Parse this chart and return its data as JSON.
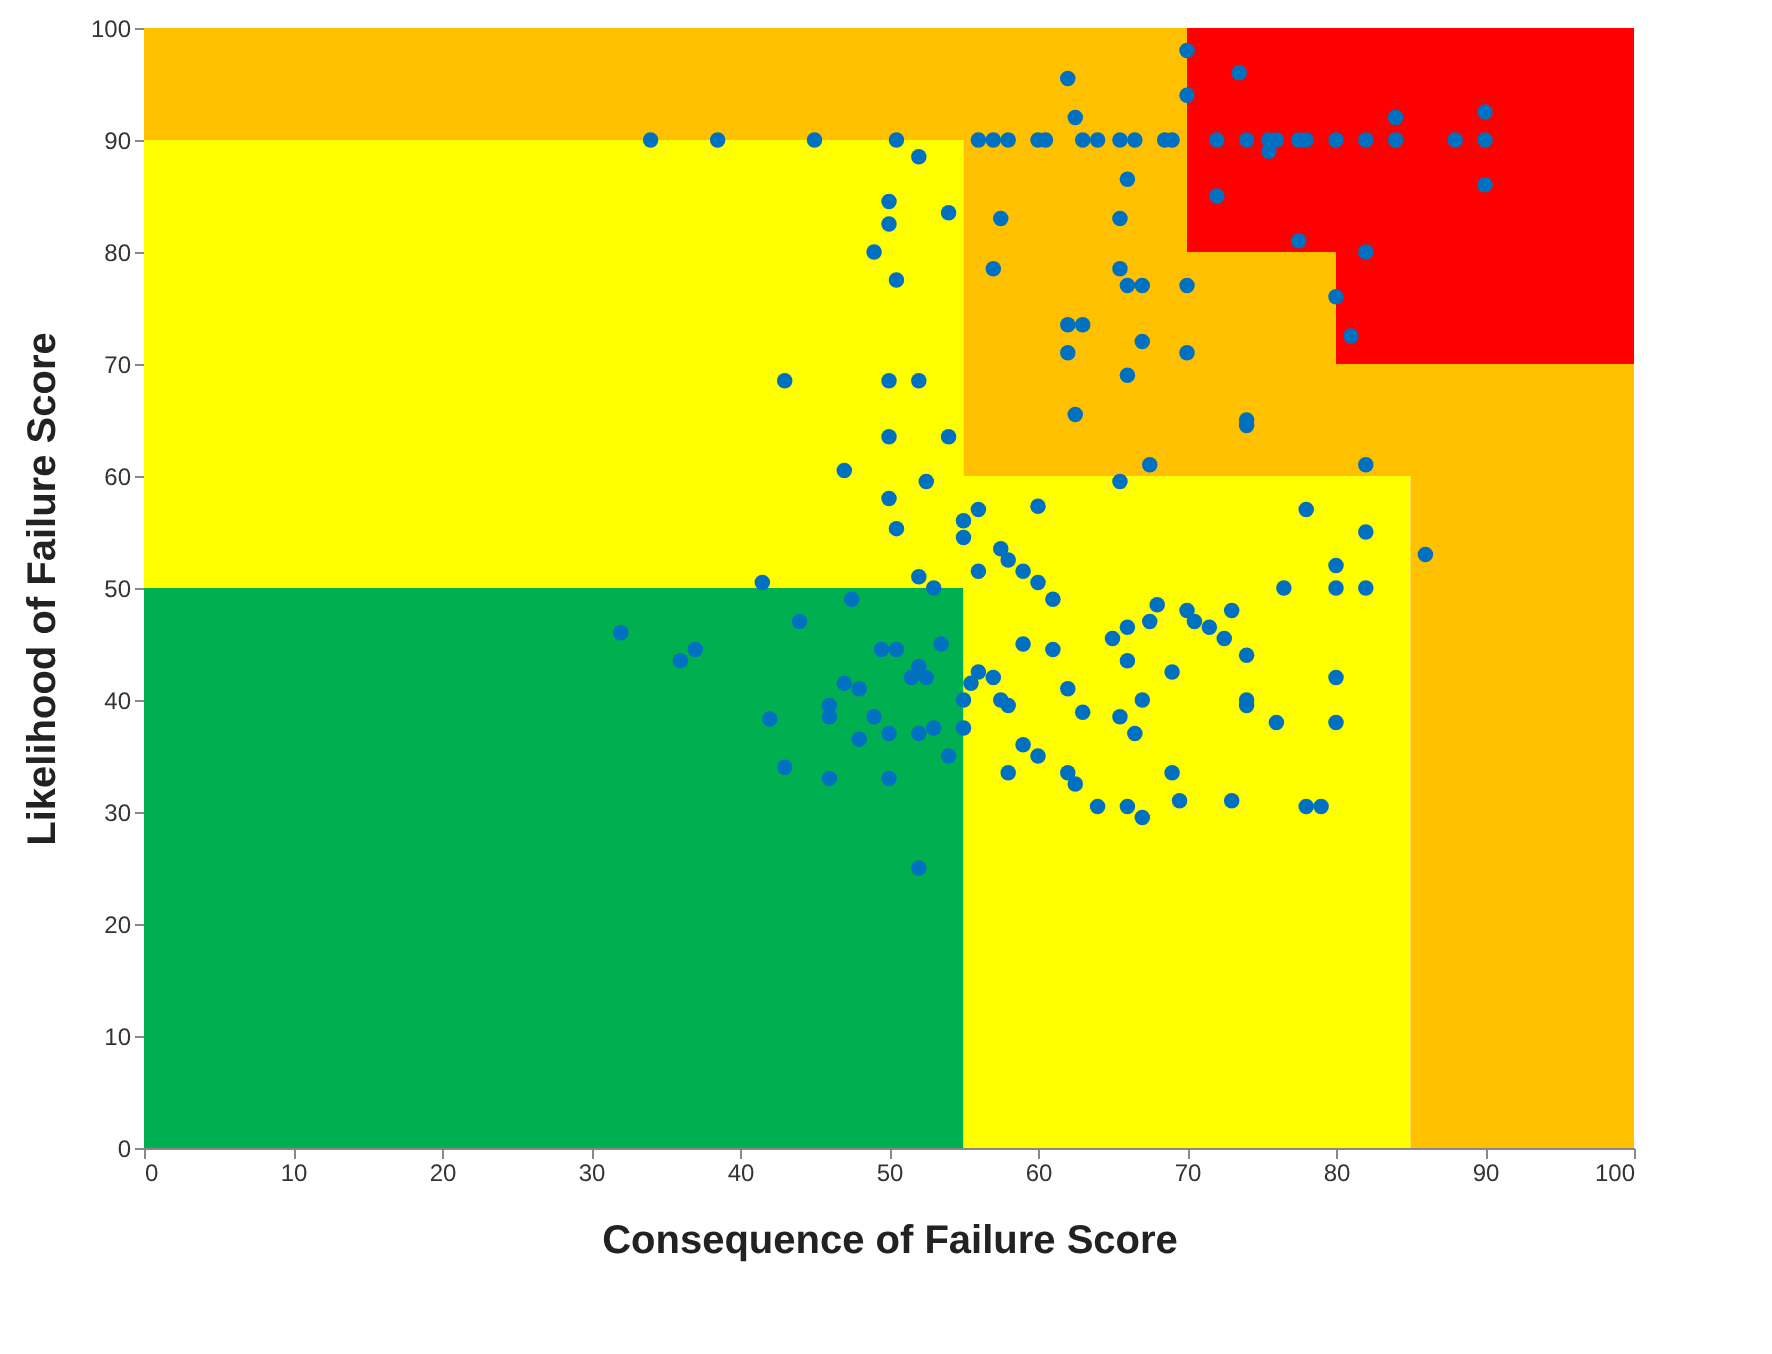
{
  "chart_data": {
    "type": "scatter",
    "xlabel": "Consequence of Failure Score",
    "ylabel": "Likelihood of Failure Score",
    "xlim": [
      0,
      100
    ],
    "ylim": [
      0,
      100
    ],
    "xticks": [
      0,
      10,
      20,
      30,
      40,
      50,
      60,
      70,
      80,
      90,
      100
    ],
    "yticks": [
      0,
      10,
      20,
      30,
      40,
      50,
      60,
      70,
      80,
      90,
      100
    ],
    "grid": false,
    "stacked": true,
    "series": [
      {
        "type": "area",
        "color": "#00b050",
        "x": [
          0,
          55,
          70,
          80,
          85,
          100
        ],
        "values": [
          50,
          0,
          0,
          0,
          0,
          0
        ]
      },
      {
        "type": "area",
        "color": "#ffff00",
        "x": [
          0,
          55,
          70,
          80,
          85,
          100
        ],
        "values": [
          40,
          60,
          60,
          60,
          0,
          0
        ]
      },
      {
        "type": "area",
        "color": "#ffc000",
        "x": [
          0,
          55,
          70,
          80,
          85,
          100
        ],
        "values": [
          10,
          40,
          20,
          10,
          70,
          70
        ]
      },
      {
        "type": "area",
        "color": "#ff0000",
        "x": [
          0,
          55,
          70,
          80,
          85,
          100
        ],
        "values": [
          0,
          0,
          20,
          30,
          30,
          30
        ]
      },
      {
        "marker": "circle",
        "color": "#0070c0",
        "x": [
          34,
          38.5,
          45,
          50.5,
          56,
          57,
          58,
          60,
          60.5,
          65.5,
          66.5,
          68.5,
          69,
          72,
          74,
          75.5,
          76,
          77.5,
          78,
          80,
          82,
          84,
          88,
          90,
          52,
          62,
          62.5,
          63,
          64,
          70,
          70,
          73.5,
          75.5,
          84,
          90,
          90,
          72,
          77.5,
          82,
          80,
          81,
          50,
          54,
          57.5,
          66,
          65.5,
          50,
          49,
          50.5,
          57,
          65.5,
          66,
          67,
          70,
          62,
          63,
          67,
          62,
          70,
          66,
          43,
          50,
          52,
          62.5,
          74,
          74,
          54,
          50,
          67.5,
          82,
          47,
          65.5,
          52.5,
          60,
          50,
          55,
          56,
          78,
          55,
          50.5,
          57.5,
          58,
          59,
          56,
          86,
          82,
          41.5,
          52,
          53,
          60,
          61,
          82,
          80,
          80,
          76.5,
          73,
          68,
          70,
          70.5,
          67.5,
          71.5,
          72.5,
          66,
          65,
          74,
          66,
          69,
          80,
          62,
          57,
          61,
          59,
          44,
          47.5,
          52,
          52.5,
          50.5,
          49.5,
          53.5,
          51.5,
          36,
          37,
          32,
          47,
          48,
          46,
          46,
          42,
          49,
          50,
          52,
          53,
          55,
          55,
          55.5,
          56,
          57.5,
          58,
          63,
          60,
          58,
          59,
          62,
          43,
          46,
          50,
          52,
          48,
          54,
          65.5,
          66.5,
          67,
          74,
          74,
          76,
          80,
          62.5,
          64,
          66,
          67,
          69.5,
          69,
          73,
          78,
          79
        ],
        "values": [
          90,
          90,
          90,
          90,
          90,
          90,
          90,
          90,
          90,
          90,
          90,
          90,
          90,
          90,
          90,
          90,
          90,
          90,
          90,
          90,
          90,
          90,
          90,
          90,
          88.5,
          95.5,
          92,
          90,
          90,
          98,
          94,
          96,
          89,
          92,
          92.5,
          86,
          85,
          81,
          80,
          76,
          72.5,
          84.5,
          83.5,
          83,
          86.5,
          83,
          82.5,
          80,
          77.5,
          78.5,
          78.5,
          77,
          77,
          77,
          73.5,
          73.5,
          72,
          71,
          71,
          69,
          68.5,
          68.5,
          68.5,
          65.5,
          65,
          64.5,
          63.5,
          63.5,
          61,
          61,
          60.5,
          59.5,
          59.5,
          57.3,
          58,
          56,
          57,
          57,
          54.5,
          55.3,
          53.5,
          52.5,
          51.5,
          51.5,
          53,
          55,
          50.5,
          51,
          50,
          50.5,
          49,
          50,
          50,
          52,
          50,
          48,
          48.5,
          48,
          47,
          47,
          46.5,
          45.5,
          46.5,
          45.5,
          44,
          43.5,
          42.5,
          42,
          41,
          42,
          44.5,
          45,
          47,
          49,
          43,
          42,
          44.5,
          44.5,
          45,
          42,
          43.5,
          44.5,
          46,
          41.5,
          41,
          39.5,
          38.5,
          38.3,
          38.5,
          37,
          37,
          37.5,
          37.5,
          40,
          41.5,
          42.5,
          40,
          39.5,
          38.9,
          35,
          33.5,
          36,
          33.5,
          34,
          33,
          33,
          25,
          36.5,
          35,
          38.5,
          37,
          40,
          39.5,
          40,
          38,
          38,
          32.5,
          30.5,
          30.5,
          29.5,
          31,
          33.5,
          31,
          30.5,
          30.5
        ]
      }
    ]
  }
}
